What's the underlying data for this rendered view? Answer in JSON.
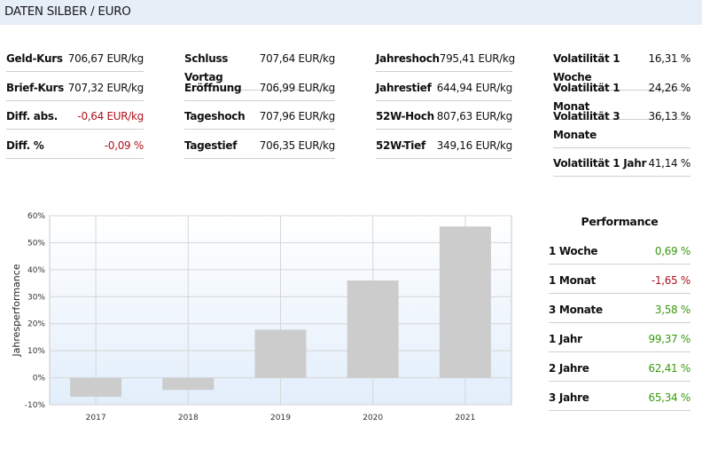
{
  "header": {
    "title": "DATEN SILBER / EURO"
  },
  "columns": [
    [
      {
        "label": "Geld-Kurs",
        "value": "706,67 EUR/kg",
        "tone": ""
      },
      {
        "label": "Brief-Kurs",
        "value": "707,32 EUR/kg",
        "tone": ""
      },
      {
        "label": "Diff. abs.",
        "value": "-0,64 EUR/kg",
        "tone": "neg"
      },
      {
        "label": "Diff. %",
        "value": "-0,09 %",
        "tone": "neg"
      }
    ],
    [
      {
        "label": "Schluss Vortag",
        "value": "707,64 EUR/kg",
        "tone": ""
      },
      {
        "label": "Eröffnung",
        "value": "706,99 EUR/kg",
        "tone": ""
      },
      {
        "label": "Tageshoch",
        "value": "707,96 EUR/kg",
        "tone": ""
      },
      {
        "label": "Tagestief",
        "value": "706,35 EUR/kg",
        "tone": ""
      }
    ],
    [
      {
        "label": "Jahreshoch",
        "value": "795,41 EUR/kg",
        "tone": ""
      },
      {
        "label": "Jahrestief",
        "value": "644,94 EUR/kg",
        "tone": ""
      },
      {
        "label": "52W-Hoch",
        "value": "807,63 EUR/kg",
        "tone": ""
      },
      {
        "label": "52W-Tief",
        "value": "349,16 EUR/kg",
        "tone": ""
      }
    ],
    [
      {
        "label": "Volatilität 1 Woche",
        "value": "16,31 %",
        "tone": ""
      },
      {
        "label": "Volatilität 1 Monat",
        "value": "24,26 %",
        "tone": ""
      },
      {
        "label": "Volatilität 3 Monate",
        "value": "36,13 %",
        "tone": ""
      },
      {
        "label": "Volatilität 1 Jahr",
        "value": "41,14 %",
        "tone": ""
      }
    ]
  ],
  "performance": {
    "title": "Performance",
    "rows": [
      {
        "label": "1 Woche",
        "value": "0,69 %",
        "tone": "pos"
      },
      {
        "label": "1 Monat",
        "value": "-1,65 %",
        "tone": "neg"
      },
      {
        "label": "3 Monate",
        "value": "3,58 %",
        "tone": "pos"
      },
      {
        "label": "1 Jahr",
        "value": "99,37 %",
        "tone": "pos"
      },
      {
        "label": "2 Jahre",
        "value": "62,41 %",
        "tone": "pos"
      },
      {
        "label": "3 Jahre",
        "value": "65,34 %",
        "tone": "pos"
      }
    ]
  },
  "chart_data": {
    "type": "bar",
    "categories": [
      "2017",
      "2018",
      "2019",
      "2020",
      "2021"
    ],
    "values": [
      -7,
      -4.5,
      17.8,
      36,
      56
    ],
    "ylabel": "Jahresperformance",
    "ylim": [
      -10,
      60
    ],
    "yticks": [
      "-10%",
      "0%",
      "10%",
      "20%",
      "30%",
      "40%",
      "50%",
      "60%"
    ],
    "grid": true,
    "legend": "none",
    "bar_color": "#cccccc"
  }
}
